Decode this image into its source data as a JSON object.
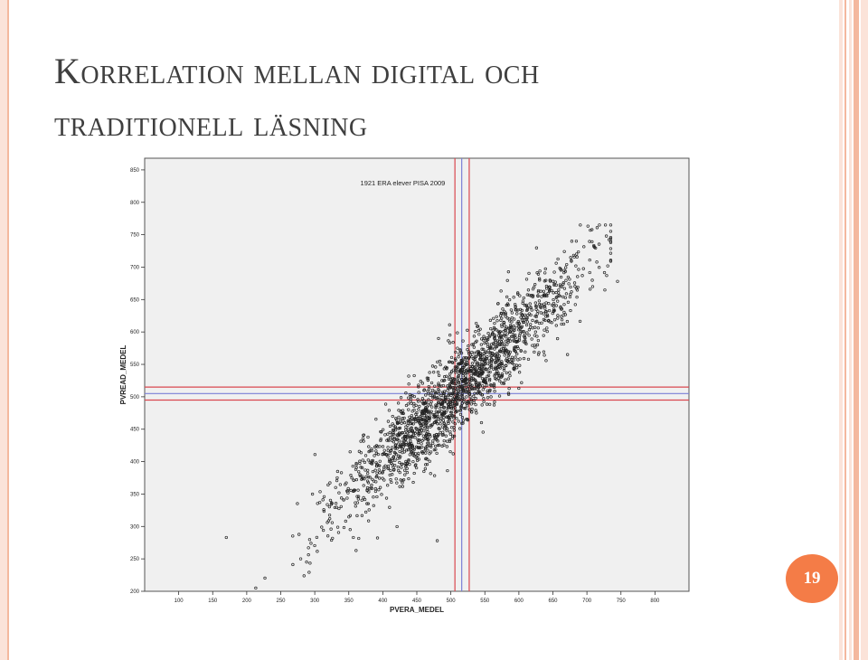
{
  "slide": {
    "title_line1": "Korrelation mellan digital och",
    "title_line2": "traditionell läsning",
    "page_number": "19"
  },
  "colors": {
    "accent": "#f47c47",
    "plot_background": "#f0f0f0",
    "mean_line_red": "#d9474f",
    "mean_line_blue": "#7a7fd6",
    "points": "#222222"
  },
  "chart_data": {
    "type": "scatter",
    "title": "1921 ERA elever PISA 2009",
    "xlabel": "PVERA_MEDEL",
    "ylabel": "PVREAD_MEDEL",
    "xlim": [
      50,
      850
    ],
    "ylim": [
      200,
      868
    ],
    "xticks": [
      100,
      150,
      200,
      250,
      300,
      350,
      400,
      450,
      500,
      550,
      600,
      650,
      700,
      750,
      800
    ],
    "yticks": [
      200,
      250,
      300,
      350,
      400,
      450,
      500,
      550,
      600,
      650,
      700,
      750,
      800,
      850
    ],
    "grid": false,
    "n_points": 1921,
    "regression_approx": {
      "slope": 1.0,
      "intercept": 0
    },
    "mean_lines": {
      "x_blue": 516,
      "x_red": [
        506,
        527
      ],
      "y_blue": 505,
      "y_red": [
        495,
        515
      ]
    },
    "extreme_points": [
      {
        "x": 170,
        "y": 283
      },
      {
        "x": 735,
        "y": 738
      },
      {
        "x": 745,
        "y": 678
      },
      {
        "x": 705,
        "y": 757
      },
      {
        "x": 480,
        "y": 278
      }
    ]
  }
}
